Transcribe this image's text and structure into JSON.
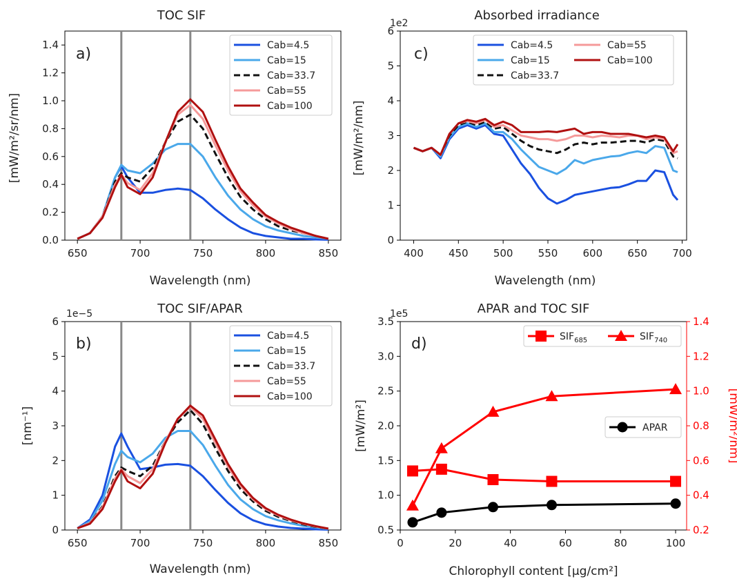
{
  "chart_data": [
    {
      "panel": "a)",
      "type": "line",
      "title": "TOC SIF",
      "xlabel": "Wavelength (nm)",
      "ylabel": "[mW/m²/sr/nm]",
      "xlim": [
        640,
        860
      ],
      "ylim": [
        0,
        1.5
      ],
      "xticks": [
        "650",
        "700",
        "750",
        "800",
        "850"
      ],
      "yticks": [
        "0.0",
        "0.2",
        "0.4",
        "0.6",
        "0.8",
        "1.0",
        "1.2",
        "1.4"
      ],
      "vlines": [
        685,
        740
      ],
      "legend_position": "top-right",
      "x": [
        650,
        660,
        670,
        680,
        685,
        690,
        700,
        710,
        720,
        730,
        740,
        750,
        760,
        770,
        780,
        790,
        800,
        810,
        820,
        830,
        840,
        850
      ],
      "series": [
        {
          "name": "Cab=4.5",
          "color": "#1a50e0",
          "dash": "solid",
          "values": [
            0.01,
            0.05,
            0.17,
            0.45,
            0.53,
            0.45,
            0.34,
            0.34,
            0.36,
            0.37,
            0.36,
            0.3,
            0.22,
            0.15,
            0.09,
            0.05,
            0.03,
            0.02,
            0.01,
            0.01,
            0.005,
            0.003
          ]
        },
        {
          "name": "Cab=15",
          "color": "#4aa8ea",
          "dash": "solid",
          "values": [
            0.01,
            0.05,
            0.17,
            0.45,
            0.54,
            0.5,
            0.48,
            0.55,
            0.65,
            0.69,
            0.69,
            0.6,
            0.45,
            0.32,
            0.22,
            0.15,
            0.1,
            0.07,
            0.05,
            0.03,
            0.02,
            0.01
          ]
        },
        {
          "name": "Cab=33.7",
          "color": "#111111",
          "dash": "dashed",
          "values": [
            0.01,
            0.05,
            0.17,
            0.42,
            0.48,
            0.45,
            0.42,
            0.52,
            0.7,
            0.85,
            0.9,
            0.8,
            0.62,
            0.45,
            0.31,
            0.22,
            0.15,
            0.1,
            0.07,
            0.05,
            0.03,
            0.01
          ]
        },
        {
          "name": "Cab=55",
          "color": "#f59a9a",
          "dash": "solid",
          "values": [
            0.01,
            0.05,
            0.17,
            0.4,
            0.47,
            0.41,
            0.36,
            0.48,
            0.7,
            0.9,
            0.97,
            0.87,
            0.68,
            0.5,
            0.35,
            0.25,
            0.17,
            0.12,
            0.08,
            0.05,
            0.03,
            0.01
          ]
        },
        {
          "name": "Cab=100",
          "color": "#b01010",
          "dash": "solid",
          "values": [
            0.01,
            0.05,
            0.16,
            0.38,
            0.47,
            0.38,
            0.33,
            0.45,
            0.7,
            0.92,
            1.01,
            0.92,
            0.72,
            0.53,
            0.37,
            0.27,
            0.18,
            0.13,
            0.09,
            0.06,
            0.03,
            0.01
          ]
        }
      ]
    },
    {
      "panel": "c)",
      "type": "line",
      "title": "Absorbed irradiance",
      "xlabel": "Wavelength (nm)",
      "ylabel": "[mW/m²/nm]",
      "scale_note": "1e2",
      "xlim": [
        385,
        705
      ],
      "ylim": [
        0,
        6
      ],
      "xticks": [
        "400",
        "450",
        "500",
        "550",
        "600",
        "650",
        "700"
      ],
      "yticks": [
        "0",
        "1",
        "2",
        "3",
        "4",
        "5",
        "6"
      ],
      "legend_position": "top-right",
      "x": [
        400,
        410,
        420,
        430,
        440,
        450,
        460,
        470,
        480,
        490,
        500,
        510,
        520,
        530,
        540,
        550,
        560,
        570,
        580,
        590,
        600,
        610,
        620,
        630,
        640,
        650,
        660,
        670,
        680,
        690,
        695
      ],
      "series": [
        {
          "name": "Cab=4.5",
          "color": "#1a50e0",
          "dash": "solid",
          "values": [
            2.65,
            2.55,
            2.65,
            2.35,
            2.9,
            3.2,
            3.3,
            3.2,
            3.3,
            3.05,
            3.0,
            2.6,
            2.2,
            1.9,
            1.5,
            1.2,
            1.05,
            1.15,
            1.3,
            1.35,
            1.4,
            1.45,
            1.5,
            1.52,
            1.6,
            1.7,
            1.7,
            2.0,
            1.95,
            1.3,
            1.15
          ]
        },
        {
          "name": "Cab=15",
          "color": "#4aa8ea",
          "dash": "solid",
          "values": [
            2.65,
            2.55,
            2.65,
            2.4,
            2.95,
            3.25,
            3.35,
            3.25,
            3.35,
            3.1,
            3.1,
            2.9,
            2.6,
            2.35,
            2.1,
            2.0,
            1.9,
            2.05,
            2.3,
            2.2,
            2.3,
            2.35,
            2.4,
            2.42,
            2.5,
            2.55,
            2.5,
            2.7,
            2.65,
            2.0,
            1.95
          ]
        },
        {
          "name": "Cab=33.7",
          "color": "#111111",
          "dash": "dashed",
          "values": [
            2.65,
            2.55,
            2.65,
            2.45,
            3.0,
            3.3,
            3.4,
            3.3,
            3.4,
            3.2,
            3.25,
            3.05,
            2.85,
            2.7,
            2.6,
            2.55,
            2.5,
            2.6,
            2.75,
            2.8,
            2.75,
            2.8,
            2.8,
            2.82,
            2.85,
            2.85,
            2.8,
            2.9,
            2.85,
            2.4,
            2.35
          ]
        },
        {
          "name": "Cab=55",
          "color": "#f59a9a",
          "dash": "solid",
          "values": [
            2.65,
            2.55,
            2.65,
            2.45,
            3.05,
            3.35,
            3.42,
            3.35,
            3.45,
            3.25,
            3.3,
            3.15,
            3.0,
            2.95,
            2.9,
            2.9,
            2.85,
            2.9,
            3.0,
            3.0,
            2.95,
            3.0,
            2.98,
            2.95,
            3.0,
            3.0,
            2.9,
            2.95,
            2.9,
            2.5,
            2.55
          ]
        },
        {
          "name": "Cab=100",
          "color": "#b01010",
          "dash": "solid",
          "values": [
            2.65,
            2.55,
            2.65,
            2.45,
            3.05,
            3.35,
            3.45,
            3.4,
            3.48,
            3.3,
            3.4,
            3.3,
            3.1,
            3.1,
            3.1,
            3.12,
            3.1,
            3.15,
            3.2,
            3.05,
            3.1,
            3.1,
            3.05,
            3.05,
            3.05,
            3.0,
            2.95,
            3.0,
            2.95,
            2.55,
            2.75
          ]
        }
      ]
    },
    {
      "panel": "b)",
      "type": "line",
      "title": "TOC SIF/APAR",
      "xlabel": "Wavelength (nm)",
      "ylabel": "[nm⁻¹]",
      "scale_note": "1e−5",
      "xlim": [
        640,
        860
      ],
      "ylim": [
        0,
        6
      ],
      "xticks": [
        "650",
        "700",
        "750",
        "800",
        "850"
      ],
      "yticks": [
        "0",
        "1",
        "2",
        "3",
        "4",
        "5",
        "6"
      ],
      "vlines": [
        685,
        740
      ],
      "legend_position": "top-right",
      "x": [
        650,
        660,
        670,
        680,
        685,
        690,
        700,
        710,
        720,
        730,
        740,
        750,
        760,
        770,
        780,
        790,
        800,
        810,
        820,
        830,
        840,
        850
      ],
      "series": [
        {
          "name": "Cab=4.5",
          "color": "#1a50e0",
          "dash": "solid",
          "values": [
            0.05,
            0.3,
            1.0,
            2.4,
            2.78,
            2.4,
            1.75,
            1.8,
            1.88,
            1.9,
            1.85,
            1.55,
            1.15,
            0.78,
            0.48,
            0.28,
            0.16,
            0.1,
            0.06,
            0.04,
            0.02,
            0.01
          ]
        },
        {
          "name": "Cab=15",
          "color": "#4aa8ea",
          "dash": "solid",
          "values": [
            0.05,
            0.25,
            0.85,
            1.9,
            2.28,
            2.1,
            1.95,
            2.2,
            2.65,
            2.85,
            2.85,
            2.45,
            1.85,
            1.3,
            0.88,
            0.6,
            0.4,
            0.28,
            0.19,
            0.12,
            0.07,
            0.03
          ]
        },
        {
          "name": "Cab=33.7",
          "color": "#111111",
          "dash": "dashed",
          "values": [
            0.05,
            0.2,
            0.68,
            1.55,
            1.8,
            1.7,
            1.55,
            1.85,
            2.55,
            3.1,
            3.45,
            3.05,
            2.35,
            1.7,
            1.18,
            0.82,
            0.55,
            0.38,
            0.26,
            0.16,
            0.09,
            0.04
          ]
        },
        {
          "name": "Cab=55",
          "color": "#f59a9a",
          "dash": "solid",
          "values": [
            0.05,
            0.2,
            0.65,
            1.48,
            1.75,
            1.55,
            1.35,
            1.75,
            2.55,
            3.2,
            3.55,
            3.2,
            2.5,
            1.82,
            1.27,
            0.88,
            0.6,
            0.42,
            0.28,
            0.18,
            0.1,
            0.04
          ]
        },
        {
          "name": "Cab=100",
          "color": "#b01010",
          "dash": "solid",
          "values": [
            0.05,
            0.18,
            0.6,
            1.4,
            1.72,
            1.4,
            1.2,
            1.62,
            2.5,
            3.2,
            3.58,
            3.3,
            2.6,
            1.9,
            1.33,
            0.92,
            0.63,
            0.44,
            0.3,
            0.19,
            0.11,
            0.04
          ]
        }
      ]
    },
    {
      "panel": "d)",
      "type": "line",
      "title": "APAR and TOC SIF",
      "xlabel": "Chlorophyll content [µg/cm²]",
      "ylabel": "[mW/m²]",
      "ylabel_right": "[mW/m²/nm]",
      "scale_note": "1e5",
      "x": [
        4.5,
        15,
        33.7,
        55,
        100
      ],
      "xlim": [
        0,
        104
      ],
      "ylim": [
        0.5,
        3.5
      ],
      "ylim_right": [
        0.2,
        1.4
      ],
      "xticks": [
        "0",
        "20",
        "40",
        "60",
        "80",
        "100"
      ],
      "yticks": [
        "0.5",
        "1.0",
        "1.5",
        "2.0",
        "2.5",
        "3.0",
        "3.5"
      ],
      "yticks_right": [
        "0.2",
        "0.4",
        "0.6",
        "0.8",
        "1.0",
        "1.2",
        "1.4"
      ],
      "series": [
        {
          "name": "APAR",
          "axis": "left",
          "color": "#000000",
          "marker": "circle",
          "values": [
            0.61,
            0.75,
            0.83,
            0.86,
            0.88
          ]
        },
        {
          "name": "SIF",
          "sub": "685",
          "axis": "right",
          "color": "#ff0000",
          "marker": "square",
          "values": [
            0.54,
            0.55,
            0.49,
            0.48,
            0.48
          ]
        },
        {
          "name": "SIF",
          "sub": "740",
          "axis": "right",
          "color": "#ff0000",
          "marker": "triangle",
          "values": [
            0.34,
            0.67,
            0.88,
            0.97,
            1.01
          ]
        }
      ]
    }
  ]
}
